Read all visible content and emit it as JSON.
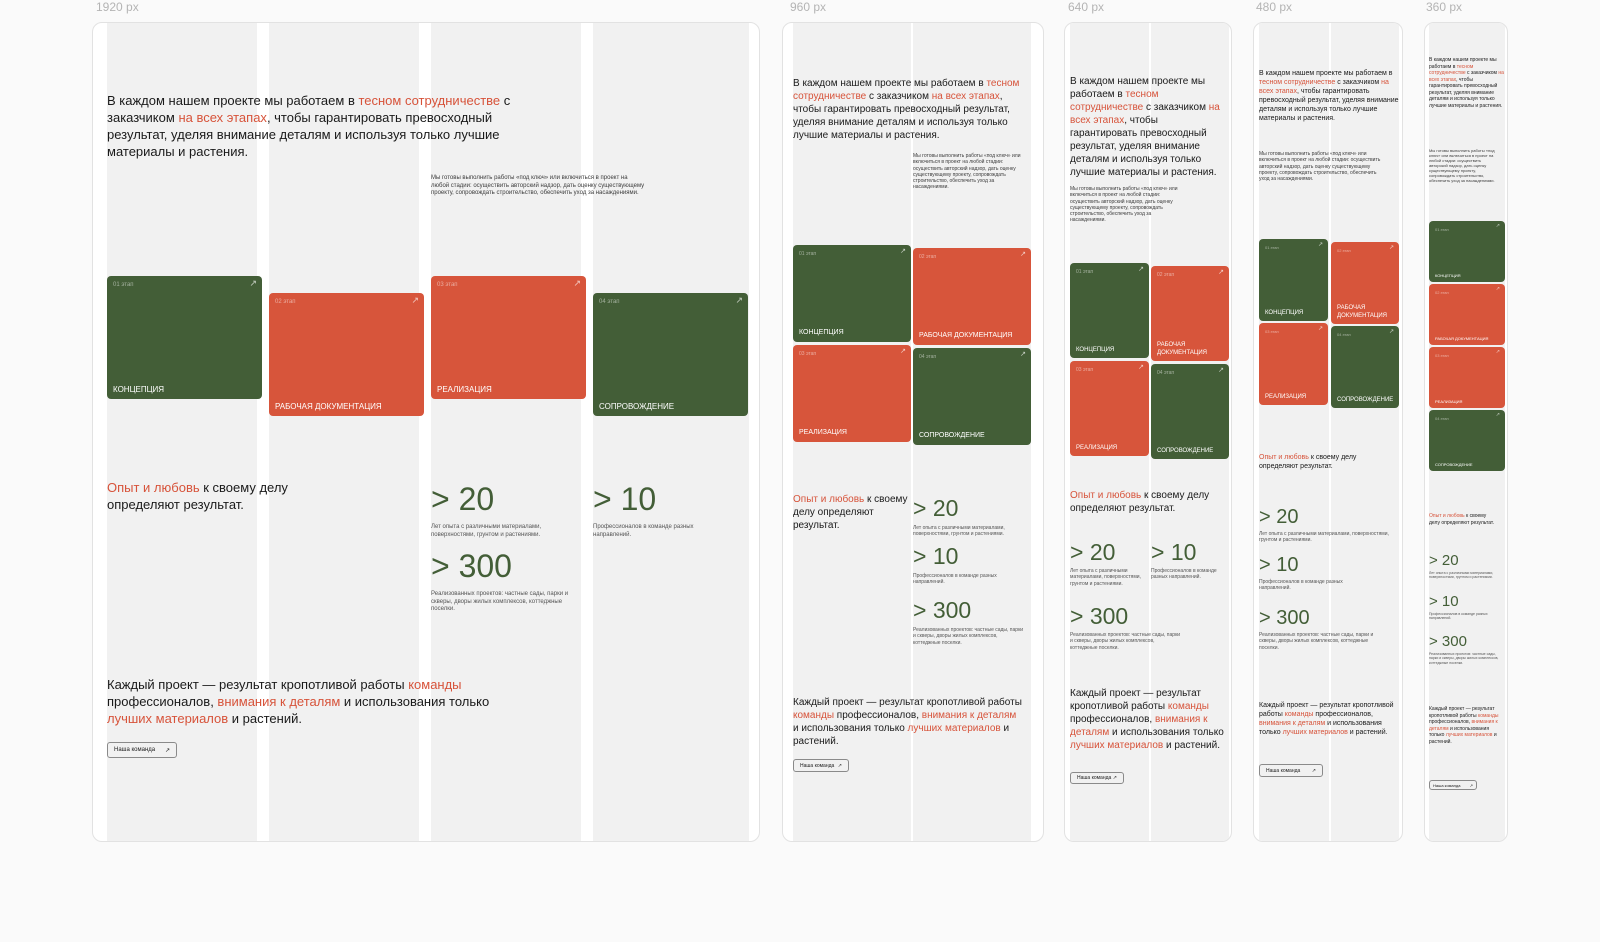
{
  "labels": {
    "w1920": "1920 px",
    "w960": "960 px",
    "w640": "640 px",
    "w480": "480 px",
    "w360": "360 px"
  },
  "colors": {
    "accent": "#d7533a",
    "green": "#435e37",
    "orange": "#d7553b",
    "column": "#f1f1f1"
  },
  "lead": {
    "p1": "В каждом нашем проекте мы работаем в ",
    "h1": "тесном сотрудничестве",
    "p2": " с заказчиком ",
    "h2": "на всех этапах",
    "p3": ", чтобы гарантировать превосходный результат, уделяя внимание деталям и используя только лучшие материалы и растения."
  },
  "description": "Мы готовы выполнить работы «под ключ» или включиться в проект на любой стадии: осуществить авторский надзор, дать оценку существующему проекту, сопровождать строительство, обеспечить уход за насаждениями.",
  "stages": [
    {
      "num": "01 этап",
      "title": "КОНЦЕПЦИЯ",
      "color": "green"
    },
    {
      "num": "02 этап",
      "title": "РАБОЧАЯ ДОКУМЕНТАЦИЯ",
      "color": "orange"
    },
    {
      "num": "03 этап",
      "title": "РЕАЛИЗАЦИЯ",
      "color": "orange"
    },
    {
      "num": "04 этап",
      "title": "СОПРОВОЖДЕНИЕ",
      "color": "green"
    }
  ],
  "arrow_icon": "↗",
  "experience": {
    "h": "Опыт и любовь",
    "p": " к своему делу определяют результат."
  },
  "stats": [
    {
      "value": "> 20",
      "desc": "Лет опыта с различными материалами, поверхностями, грунтом и растениями."
    },
    {
      "value": "> 10",
      "desc": "Профессионалов в команде разных направлений."
    },
    {
      "value": "> 300",
      "desc": "Реализованных проектов: частные сады, парки и скверы, дворы жилых комплексов, коттеджные поселки."
    }
  ],
  "closing": {
    "p1": "Каждый проект — результат кропотливой работы ",
    "h1": "команды",
    "p2": " профессионалов, ",
    "h2": "внимания к деталям",
    "p3": " и использования только ",
    "h3": "лучших материалов",
    "p4": " и растений."
  },
  "button": {
    "label": "Наша команда",
    "icon": "arrow-up-right-icon"
  }
}
